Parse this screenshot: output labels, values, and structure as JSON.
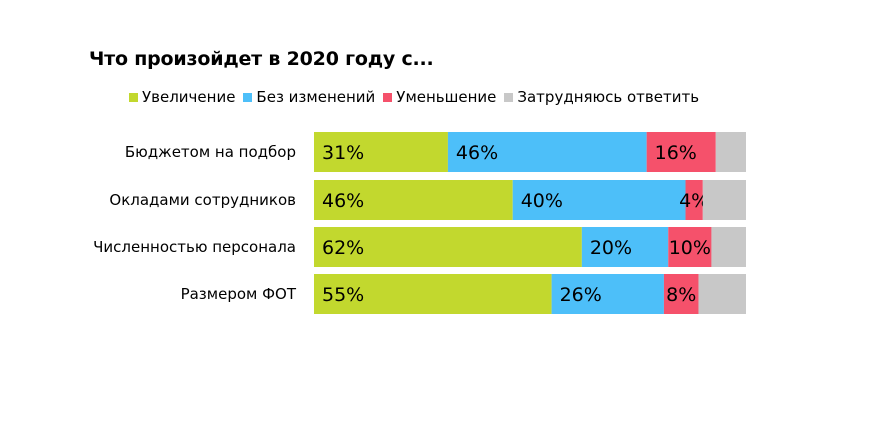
{
  "chart_data": {
    "type": "bar",
    "orientation": "horizontal",
    "stacked": true,
    "title": "Что произойдет в 2020 году с...",
    "categories": [
      "Бюджетом на подбор",
      "Окладами сотрудников",
      "Численностью персонала",
      "Размером ФОТ"
    ],
    "series": [
      {
        "name": "Увеличение",
        "color": "#c2d82e",
        "values": [
          31,
          46,
          62,
          55
        ]
      },
      {
        "name": "Без изменений",
        "color": "#4dbff9",
        "values": [
          46,
          40,
          20,
          26
        ]
      },
      {
        "name": "Уменьшение",
        "color": "#f5516b",
        "values": [
          16,
          4,
          10,
          8
        ]
      },
      {
        "name": "Затрудняюсь ответить",
        "color": "#c8c8c8",
        "values": [
          7,
          10,
          8,
          11
        ]
      }
    ],
    "value_labels_shown_for": [
      "Увеличение",
      "Без изменений",
      "Уменьшение"
    ],
    "unit": "%",
    "xlim": [
      0,
      100
    ],
    "legend_position": "top",
    "grid": false
  }
}
